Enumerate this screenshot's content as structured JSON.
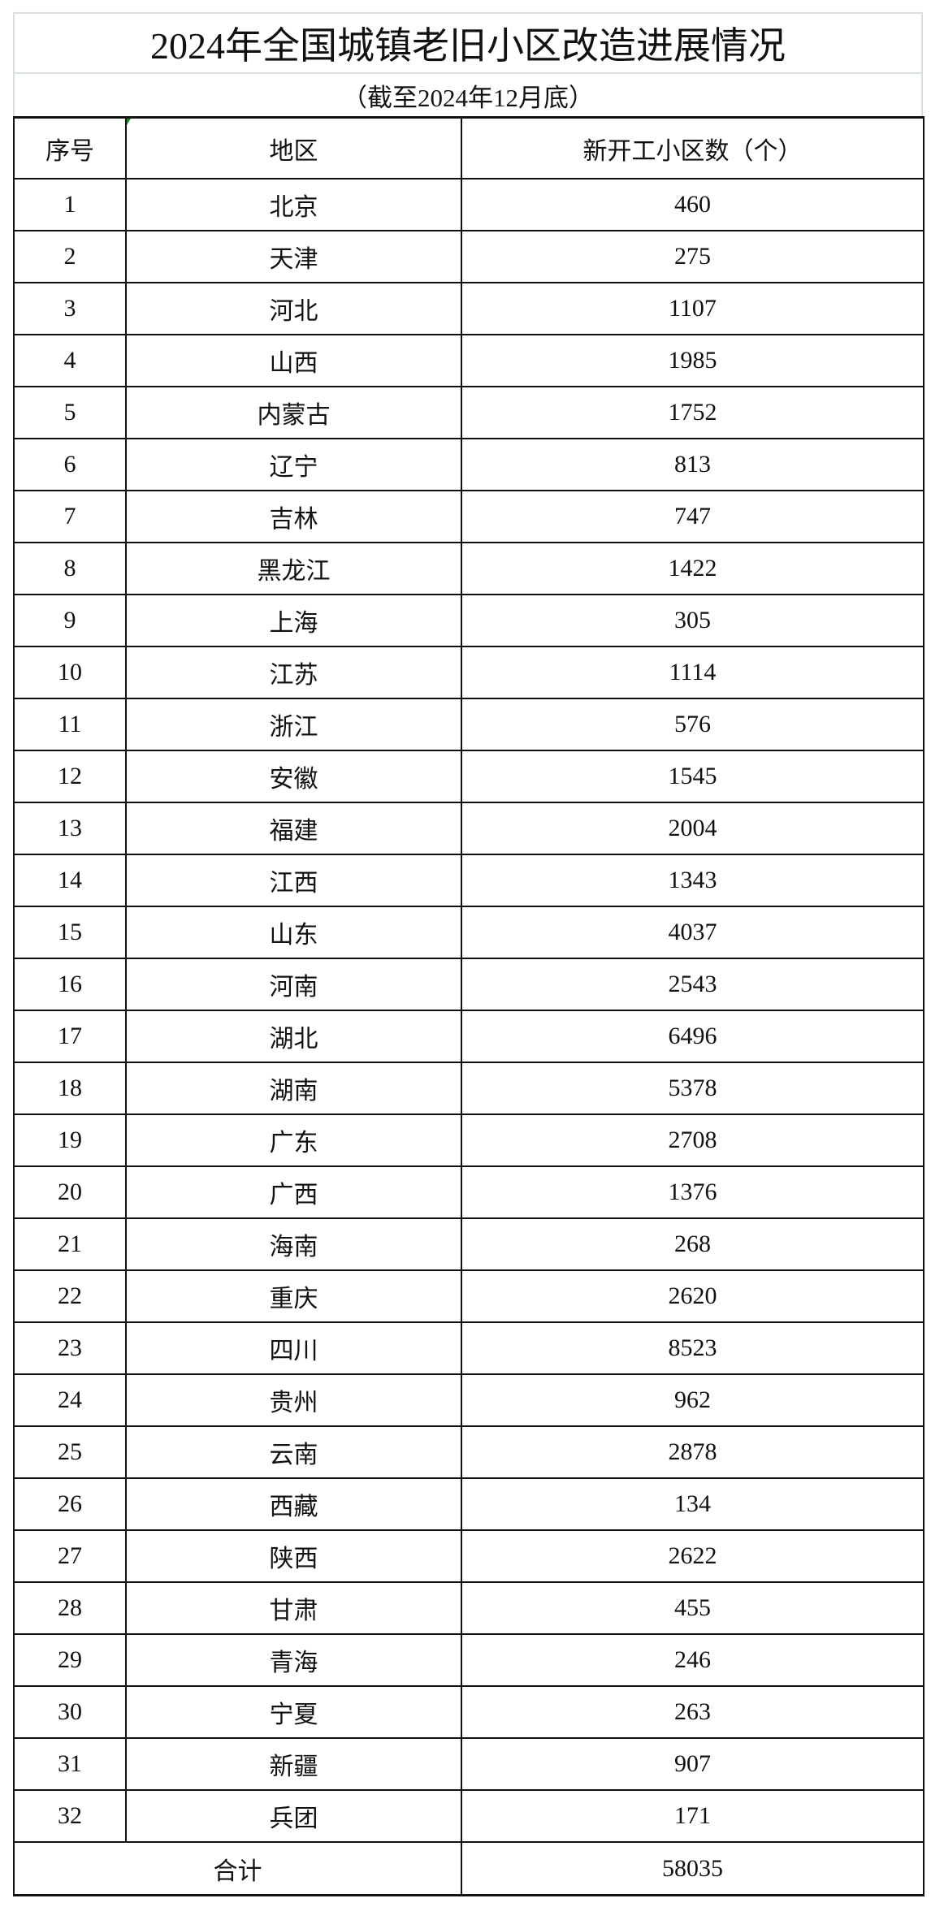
{
  "title": "2024年全国城镇老旧小区改造进展情况",
  "subtitle": "（截至2024年12月底）",
  "headers": [
    "序号",
    "地区",
    "新开工小区数（个）"
  ],
  "rows": [
    [
      "1",
      "北京",
      "460"
    ],
    [
      "2",
      "天津",
      "275"
    ],
    [
      "3",
      "河北",
      "1107"
    ],
    [
      "4",
      "山西",
      "1985"
    ],
    [
      "5",
      "内蒙古",
      "1752"
    ],
    [
      "6",
      "辽宁",
      "813"
    ],
    [
      "7",
      "吉林",
      "747"
    ],
    [
      "8",
      "黑龙江",
      "1422"
    ],
    [
      "9",
      "上海",
      "305"
    ],
    [
      "10",
      "江苏",
      "1114"
    ],
    [
      "11",
      "浙江",
      "576"
    ],
    [
      "12",
      "安徽",
      "1545"
    ],
    [
      "13",
      "福建",
      "2004"
    ],
    [
      "14",
      "江西",
      "1343"
    ],
    [
      "15",
      "山东",
      "4037"
    ],
    [
      "16",
      "河南",
      "2543"
    ],
    [
      "17",
      "湖北",
      "6496"
    ],
    [
      "18",
      "湖南",
      "5378"
    ],
    [
      "19",
      "广东",
      "2708"
    ],
    [
      "20",
      "广西",
      "1376"
    ],
    [
      "21",
      "海南",
      "268"
    ],
    [
      "22",
      "重庆",
      "2620"
    ],
    [
      "23",
      "四川",
      "8523"
    ],
    [
      "24",
      "贵州",
      "962"
    ],
    [
      "25",
      "云南",
      "2878"
    ],
    [
      "26",
      "西藏",
      "134"
    ],
    [
      "27",
      "陕西",
      "2622"
    ],
    [
      "28",
      "甘肃",
      "455"
    ],
    [
      "29",
      "青海",
      "246"
    ],
    [
      "30",
      "宁夏",
      "263"
    ],
    [
      "31",
      "新疆",
      "907"
    ],
    [
      "32",
      "兵团",
      "171"
    ]
  ],
  "total": {
    "label": "合计",
    "value": "58035"
  }
}
